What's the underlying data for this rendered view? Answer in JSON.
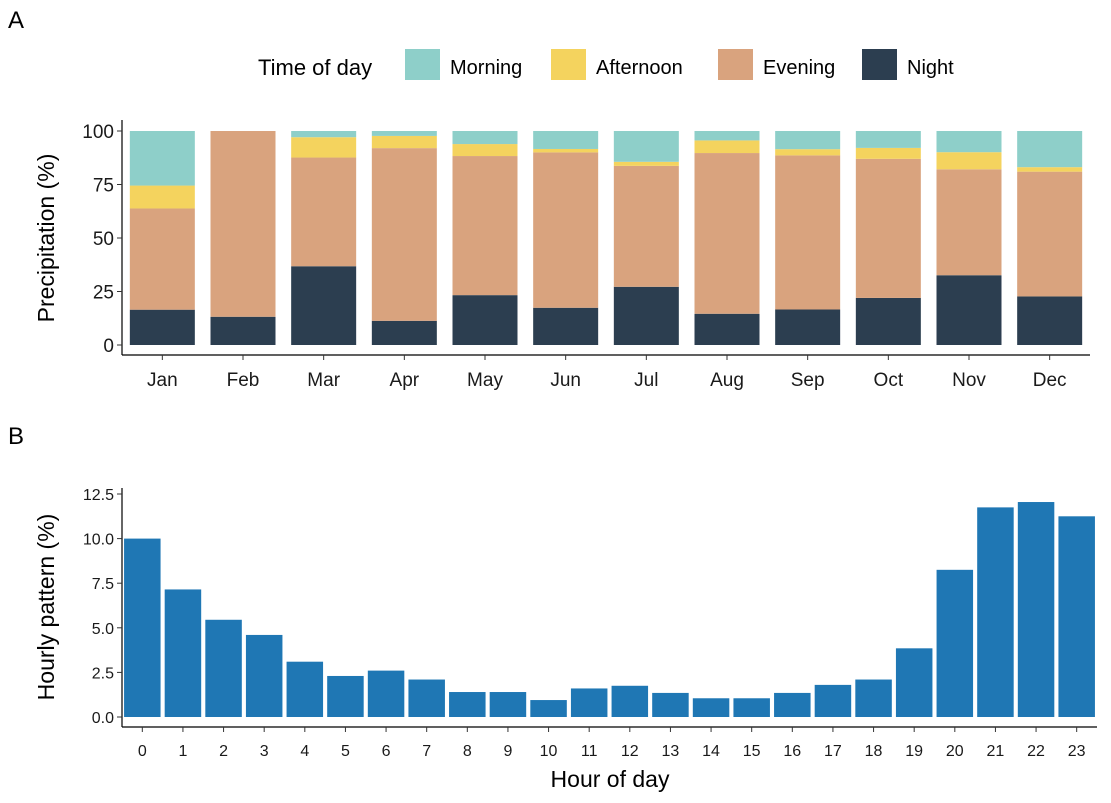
{
  "panel_labels": [
    "A",
    "B"
  ],
  "chart_data": [
    {
      "type": "bar",
      "stacked": true,
      "categories": [
        "Jan",
        "Feb",
        "Mar",
        "Apr",
        "May",
        "Jun",
        "Jul",
        "Aug",
        "Sep",
        "Oct",
        "Nov",
        "Dec"
      ],
      "ylabel": "Precipitation (%)",
      "xlabel": "",
      "ylim": [
        0,
        100
      ],
      "yticks": [
        0,
        25,
        50,
        75,
        100
      ],
      "grid": false,
      "legend": {
        "title": "Time of day",
        "position": "top",
        "entries": [
          "Morning",
          "Afternoon",
          "Evening",
          "Night"
        ]
      },
      "series": [
        {
          "name": "Night",
          "color": "#2c3e50",
          "values": [
            16.5,
            13.2,
            36.8,
            11.3,
            23.3,
            17.4,
            27.2,
            14.6,
            16.6,
            22.0,
            32.6,
            22.7
          ]
        },
        {
          "name": "Evening",
          "color": "#d9a37e",
          "values": [
            47.3,
            86.8,
            50.8,
            80.7,
            65.0,
            72.6,
            56.5,
            75.1,
            72.0,
            65.0,
            49.5,
            58.3
          ]
        },
        {
          "name": "Afternoon",
          "color": "#f4d35e",
          "values": [
            10.7,
            0.0,
            9.5,
            5.7,
            5.6,
            1.6,
            1.9,
            5.9,
            2.9,
            5.1,
            8.0,
            2.1
          ]
        },
        {
          "name": "Morning",
          "color": "#8ecfc9",
          "values": [
            25.5,
            0.0,
            2.9,
            2.3,
            6.1,
            8.4,
            14.4,
            4.4,
            8.5,
            7.9,
            9.9,
            16.9
          ]
        }
      ]
    },
    {
      "type": "bar",
      "categories": [
        "0",
        "1",
        "2",
        "3",
        "4",
        "5",
        "6",
        "7",
        "8",
        "9",
        "10",
        "11",
        "12",
        "13",
        "14",
        "15",
        "16",
        "17",
        "18",
        "19",
        "20",
        "21",
        "22",
        "23"
      ],
      "values": [
        10.0,
        7.15,
        5.45,
        4.6,
        3.1,
        2.3,
        2.6,
        2.1,
        1.4,
        1.4,
        0.95,
        1.6,
        1.75,
        1.35,
        1.05,
        1.05,
        1.35,
        1.8,
        2.1,
        3.85,
        8.25,
        11.75,
        12.05,
        11.25
      ],
      "color": "#1f77b4",
      "xlabel": "Hour of day",
      "ylabel": "Hourly pattern (%)",
      "ylim": [
        0,
        12.5
      ],
      "yticks": [
        "0.0",
        "2.5",
        "5.0",
        "7.5",
        "10.0",
        "12.5"
      ],
      "grid": false
    }
  ]
}
